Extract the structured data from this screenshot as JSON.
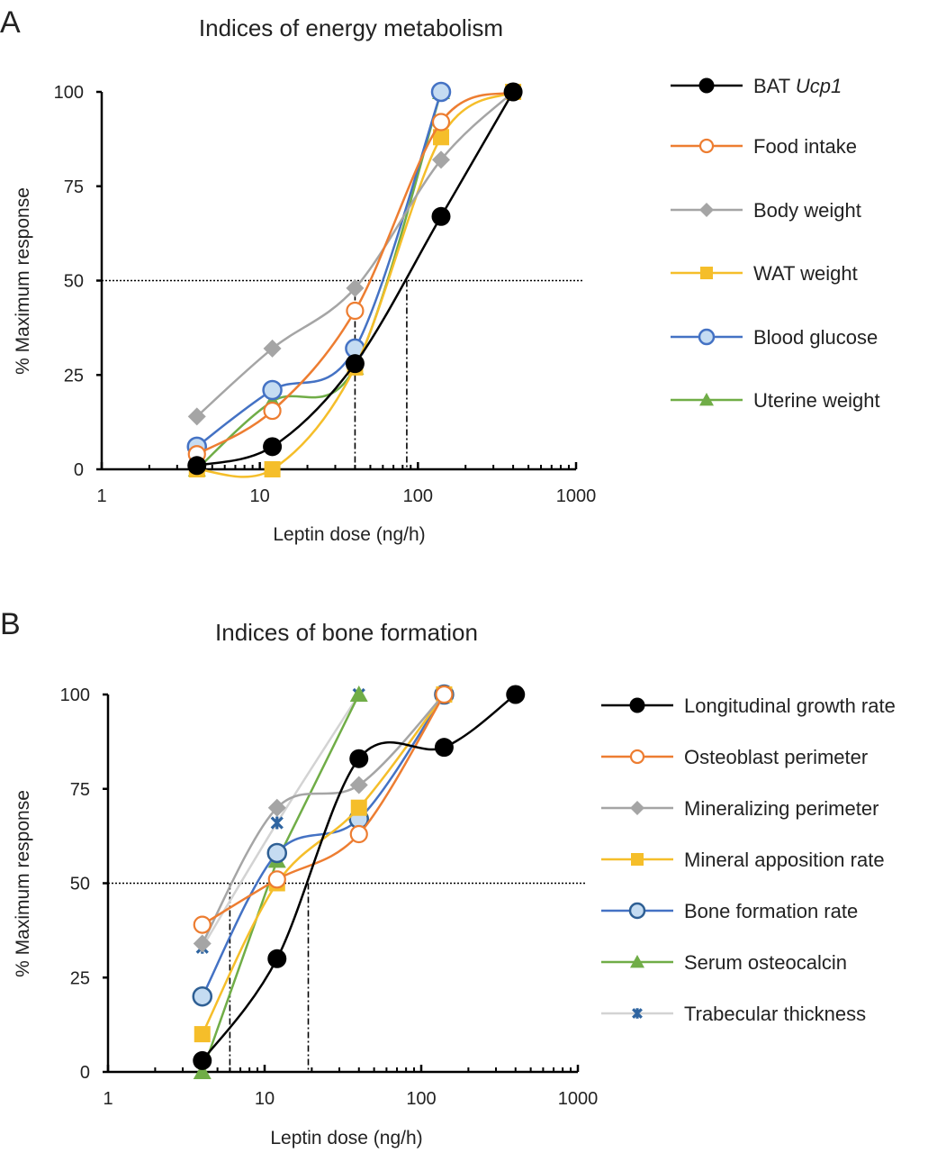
{
  "chart_data": [
    {
      "panel_label": "A",
      "type": "line",
      "title": "Indices of energy metabolism",
      "xlabel": "Leptin dose (ng/h)",
      "ylabel": "% Maximum response",
      "xscale": "log",
      "xlim": [
        1,
        1000
      ],
      "ylim": [
        0,
        100
      ],
      "xticks": [
        "1",
        "10",
        "100",
        "1000"
      ],
      "yticks": [
        "0",
        "25",
        "50",
        "75",
        "100"
      ],
      "grid": false,
      "legend_position": "right",
      "x": [
        4,
        12,
        40,
        140,
        400
      ],
      "reference_lines": {
        "horizontal_y": 50,
        "vertical_x": [
          40,
          85
        ]
      },
      "series": [
        {
          "name": "BAT ",
          "name_italic": "Ucp1",
          "color": "#000000",
          "marker": "filled-circle",
          "smooth": true,
          "values": [
            1,
            6,
            28,
            67,
            100
          ]
        },
        {
          "name": "Food intake",
          "color": "#ED7D31",
          "marker": "open-circle",
          "smooth": true,
          "values": [
            4,
            15.5,
            42,
            92,
            100
          ]
        },
        {
          "name": "Body weight",
          "color": "#A5A5A5",
          "marker": "diamond",
          "smooth": true,
          "values": [
            14,
            32,
            48,
            82,
            100
          ]
        },
        {
          "name": "WAT weight",
          "color": "#F5BE2A",
          "marker": "square",
          "smooth": true,
          "values": [
            0,
            0,
            27,
            88,
            100
          ]
        },
        {
          "name": "Blood glucose",
          "color": "#4472C4",
          "marker": "light-circle",
          "smooth": true,
          "values": [
            6,
            21,
            32,
            100,
            null
          ]
        },
        {
          "name": "Uterine weight",
          "color": "#70AD47",
          "marker": "triangle",
          "smooth": true,
          "values": [
            0,
            18,
            27,
            100,
            null
          ]
        }
      ]
    },
    {
      "panel_label": "B",
      "type": "line",
      "title": "Indices of bone formation",
      "xlabel": "Leptin dose (ng/h)",
      "ylabel": "% Maximum response",
      "xscale": "log",
      "xlim": [
        1,
        1000
      ],
      "ylim": [
        0,
        100
      ],
      "xticks": [
        "1",
        "10",
        "100",
        "1000"
      ],
      "yticks": [
        "0",
        "25",
        "50",
        "75",
        "100"
      ],
      "grid": false,
      "legend_position": "right",
      "x": [
        4,
        12,
        40,
        140,
        400
      ],
      "reference_lines": {
        "horizontal_y": 50,
        "vertical_x": [
          6,
          19
        ]
      },
      "series": [
        {
          "name": "Longitudinal growth rate",
          "color": "#000000",
          "marker": "filled-circle",
          "smooth": true,
          "values": [
            3,
            30,
            83,
            86,
            100
          ]
        },
        {
          "name": "Osteoblast perimeter",
          "color": "#ED7D31",
          "marker": "open-circle",
          "smooth": true,
          "values": [
            39,
            51,
            63,
            100,
            null
          ]
        },
        {
          "name": "Mineralizing perimeter",
          "color": "#A5A5A5",
          "marker": "diamond",
          "smooth": true,
          "values": [
            34,
            70,
            76,
            100,
            null
          ]
        },
        {
          "name": "Mineral apposition rate",
          "color": "#F5BE2A",
          "marker": "square",
          "smooth": true,
          "values": [
            10,
            50,
            70,
            100,
            null
          ]
        },
        {
          "name": "Bone formation rate",
          "color": "#4472C4",
          "marker": "light-circle-dark",
          "smooth": true,
          "values": [
            20,
            58,
            67,
            100,
            null
          ]
        },
        {
          "name": "Serum osteocalcin",
          "color": "#70AD47",
          "marker": "triangle",
          "smooth": false,
          "values": [
            0,
            56,
            100,
            null,
            null
          ]
        },
        {
          "name": "Trabecular thickness",
          "color": "#D3D3D3",
          "marker_color": "#2E64A0",
          "marker": "x",
          "smooth": true,
          "values": [
            33,
            66,
            100,
            null,
            null
          ]
        }
      ]
    }
  ]
}
